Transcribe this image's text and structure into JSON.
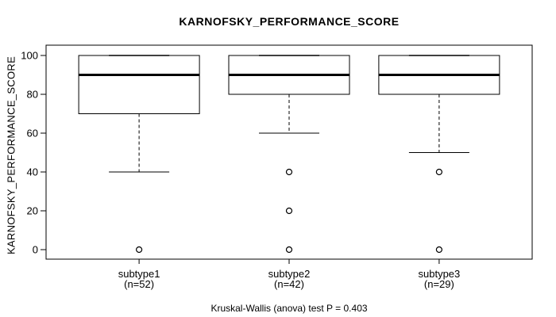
{
  "chart_data": {
    "type": "boxplot",
    "title": "KARNOFSKY_PERFORMANCE_SCORE",
    "ylabel": "KARNOFSKY_PERFORMANCE_SCORE",
    "footnote": "Kruskal-Wallis (anova) test P = 0.403",
    "categories": [
      "subtype1",
      "subtype2",
      "subtype3"
    ],
    "category_sublabels": [
      "(n=52)",
      "(n=42)",
      "(n=29)"
    ],
    "ylim": [
      0,
      100
    ],
    "yticks": [
      0,
      20,
      40,
      60,
      80,
      100
    ],
    "grid": false,
    "legend": null,
    "groups": [
      {
        "label": "subtype1",
        "sublabel": "(n=52)",
        "n": 52,
        "q1": 70,
        "median": 90,
        "q3": 100,
        "whisker_low": 40,
        "whisker_high": 100,
        "outliers": [
          0
        ]
      },
      {
        "label": "subtype2",
        "sublabel": "(n=42)",
        "n": 42,
        "q1": 80,
        "median": 90,
        "q3": 100,
        "whisker_low": 60,
        "whisker_high": 100,
        "outliers": [
          40,
          20,
          0
        ]
      },
      {
        "label": "subtype3",
        "sublabel": "(n=29)",
        "n": 29,
        "q1": 80,
        "median": 90,
        "q3": 100,
        "whisker_low": 50,
        "whisker_high": 100,
        "outliers": [
          40,
          0
        ]
      }
    ],
    "colors": {
      "line": "#000000",
      "box_fill": "#ffffff",
      "background": "#ffffff"
    }
  }
}
